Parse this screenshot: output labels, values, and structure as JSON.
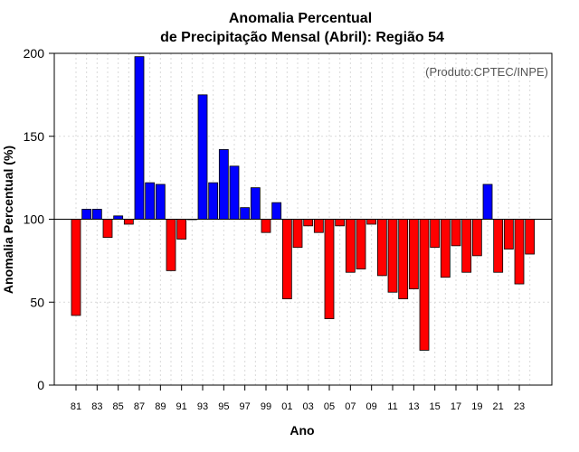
{
  "chart_data": {
    "type": "bar",
    "title_line1": "Anomalia Percentual",
    "title_line2": "de Precipitação Mensal (Abril): Região 54",
    "xlabel": "Ano",
    "ylabel": "Anomalia Percentual (%)",
    "credit": "(Produto:CPTEC/INPE)",
    "ylim": [
      0,
      200
    ],
    "yticks": [
      0,
      50,
      100,
      150,
      200
    ],
    "baseline": 100,
    "colors": {
      "above": "#0000ff",
      "below": "#ff0000",
      "edge": "#000000"
    },
    "categories": [
      "81",
      "82",
      "83",
      "84",
      "85",
      "86",
      "87",
      "88",
      "89",
      "90",
      "91",
      "92",
      "93",
      "94",
      "95",
      "96",
      "97",
      "98",
      "99",
      "00",
      "01",
      "02",
      "03",
      "04",
      "05",
      "06",
      "07",
      "08",
      "09",
      "10",
      "11",
      "12",
      "13",
      "14",
      "15",
      "16",
      "17",
      "18",
      "19",
      "20",
      "21",
      "22",
      "23",
      "24"
    ],
    "tick_labels": [
      "81",
      "83",
      "85",
      "87",
      "89",
      "91",
      "93",
      "95",
      "97",
      "99",
      "01",
      "03",
      "05",
      "07",
      "09",
      "11",
      "13",
      "15",
      "17",
      "19",
      "21",
      "23"
    ],
    "values": [
      42,
      106,
      106,
      89,
      102,
      97,
      198,
      122,
      121,
      69,
      88,
      100,
      175,
      122,
      142,
      132,
      107,
      119,
      92,
      110,
      52,
      83,
      96,
      92,
      40,
      96,
      68,
      70,
      97,
      66,
      56,
      52,
      58,
      21,
      83,
      65,
      84,
      68,
      78,
      121,
      68,
      82,
      61,
      79
    ]
  }
}
